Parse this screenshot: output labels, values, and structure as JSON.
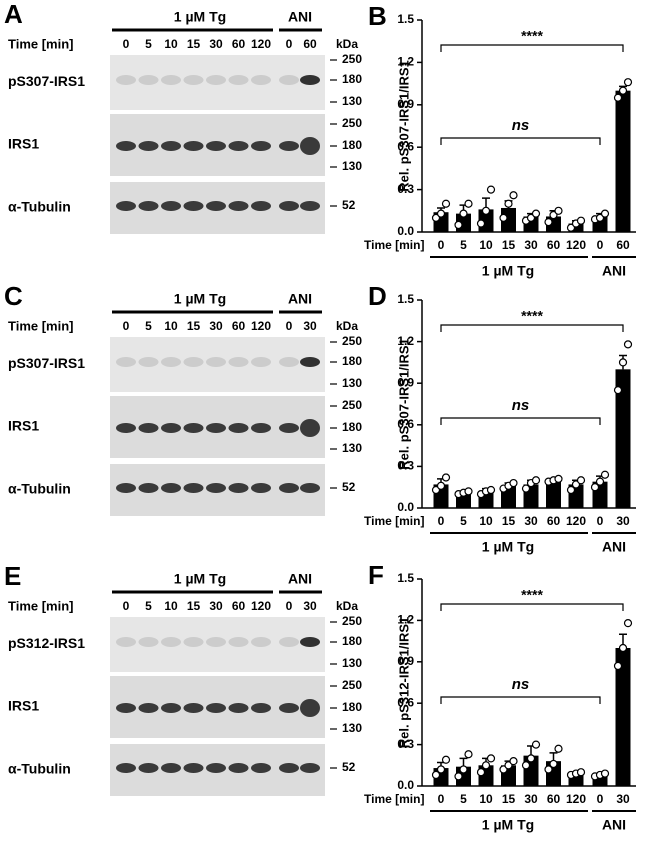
{
  "blots": [
    {
      "panel": "A",
      "treatment": "1 µM Tg",
      "control": "ANI",
      "time_label": "Time [min]",
      "lanes": [
        "0",
        "5",
        "10",
        "15",
        "30",
        "60",
        "120",
        "0",
        "60"
      ],
      "unit": "kDa",
      "rows": [
        {
          "label": "pS307-IRS1",
          "markers": [
            "250",
            "180",
            "130"
          ]
        },
        {
          "label": "IRS1",
          "markers": [
            "250",
            "180",
            "130"
          ]
        },
        {
          "label": "α-Tubulin",
          "markers": [
            "52"
          ]
        }
      ]
    },
    {
      "panel": "C",
      "treatment": "1 µM Tg",
      "control": "ANI",
      "time_label": "Time [min]",
      "lanes": [
        "0",
        "5",
        "10",
        "15",
        "30",
        "60",
        "120",
        "0",
        "30"
      ],
      "unit": "kDa",
      "rows": [
        {
          "label": "pS307-IRS1",
          "markers": [
            "250",
            "180",
            "130"
          ]
        },
        {
          "label": "IRS1",
          "markers": [
            "250",
            "180",
            "130"
          ]
        },
        {
          "label": "α-Tubulin",
          "markers": [
            "52"
          ]
        }
      ]
    },
    {
      "panel": "E",
      "treatment": "1 µM Tg",
      "control": "ANI",
      "time_label": "Time [min]",
      "lanes": [
        "0",
        "5",
        "10",
        "15",
        "30",
        "60",
        "120",
        "0",
        "30"
      ],
      "unit": "kDa",
      "rows": [
        {
          "label": "pS312-IRS1",
          "markers": [
            "250",
            "180",
            "130"
          ]
        },
        {
          "label": "IRS1",
          "markers": [
            "250",
            "180",
            "130"
          ]
        },
        {
          "label": "α-Tubulin",
          "markers": [
            "52"
          ]
        }
      ]
    }
  ],
  "chart_data": [
    {
      "type": "bar",
      "panel": "B",
      "ylabel": "Rel. pS307-IRS1/IRS1",
      "x_label": "Time [min]",
      "group_labels": [
        "1 µM Tg",
        "ANI"
      ],
      "categories": [
        "0",
        "5",
        "10",
        "15",
        "30",
        "60",
        "120",
        "0",
        "60"
      ],
      "values": [
        0.14,
        0.13,
        0.16,
        0.17,
        0.11,
        0.11,
        0.06,
        0.11,
        1.0
      ],
      "errors": [
        0.03,
        0.06,
        0.08,
        0.05,
        0.02,
        0.04,
        0.02,
        0.02,
        0.03
      ],
      "points": [
        [
          0.1,
          0.13,
          0.2
        ],
        [
          0.05,
          0.13,
          0.2
        ],
        [
          0.06,
          0.15,
          0.3
        ],
        [
          0.1,
          0.2,
          0.26
        ],
        [
          0.08,
          0.1,
          0.13
        ],
        [
          0.07,
          0.12,
          0.15
        ],
        [
          0.03,
          0.06,
          0.08
        ],
        [
          0.09,
          0.1,
          0.13
        ],
        [
          0.95,
          1.0,
          1.06
        ]
      ],
      "annotations": [
        "****",
        "ns"
      ],
      "color": "#000000",
      "ylim": [
        0,
        1.5
      ],
      "yticks": [
        {
          "value": 0,
          "label": "0.0"
        },
        0.3,
        0.6,
        0.9,
        1.2,
        1.5
      ]
    },
    {
      "type": "bar",
      "panel": "D",
      "ylabel": "Rel. pS307-IRS1/IRS1",
      "x_label": "Time [min]",
      "group_labels": [
        "1 µM Tg",
        "ANI"
      ],
      "categories": [
        "0",
        "5",
        "10",
        "15",
        "30",
        "60",
        "120",
        "0",
        "30"
      ],
      "values": [
        0.17,
        0.11,
        0.12,
        0.16,
        0.17,
        0.2,
        0.17,
        0.19,
        1.0
      ],
      "errors": [
        0.04,
        0.01,
        0.02,
        0.02,
        0.03,
        0.01,
        0.03,
        0.04,
        0.1
      ],
      "points": [
        [
          0.13,
          0.16,
          0.22
        ],
        [
          0.1,
          0.11,
          0.12
        ],
        [
          0.1,
          0.12,
          0.13
        ],
        [
          0.14,
          0.16,
          0.18
        ],
        [
          0.14,
          0.18,
          0.2
        ],
        [
          0.19,
          0.2,
          0.21
        ],
        [
          0.13,
          0.17,
          0.2
        ],
        [
          0.15,
          0.19,
          0.24
        ],
        [
          0.85,
          1.05,
          1.18
        ]
      ],
      "annotations": [
        "****",
        "ns"
      ],
      "color": "#000000",
      "ylim": [
        0,
        1.5
      ],
      "yticks": [
        {
          "value": 0,
          "label": "0.0"
        },
        0.3,
        0.6,
        0.9,
        1.2,
        1.5
      ]
    },
    {
      "type": "bar",
      "panel": "F",
      "ylabel": "Rel. pS312-IRS1/IRS1",
      "x_label": "Time [min]",
      "group_labels": [
        "1 µM Tg",
        "ANI"
      ],
      "categories": [
        "0",
        "5",
        "10",
        "15",
        "30",
        "60",
        "120",
        "0",
        "30"
      ],
      "values": [
        0.13,
        0.14,
        0.15,
        0.15,
        0.22,
        0.18,
        0.09,
        0.08,
        1.0
      ],
      "errors": [
        0.04,
        0.06,
        0.05,
        0.03,
        0.07,
        0.06,
        0.01,
        0.01,
        0.1
      ],
      "points": [
        [
          0.08,
          0.12,
          0.19
        ],
        [
          0.07,
          0.12,
          0.23
        ],
        [
          0.1,
          0.15,
          0.2
        ],
        [
          0.12,
          0.15,
          0.18
        ],
        [
          0.15,
          0.2,
          0.3
        ],
        [
          0.12,
          0.16,
          0.27
        ],
        [
          0.08,
          0.09,
          0.1
        ],
        [
          0.07,
          0.08,
          0.09
        ],
        [
          0.87,
          1.0,
          1.18
        ]
      ],
      "annotations": [
        "****",
        "ns"
      ],
      "color": "#000000",
      "ylim": [
        0,
        1.5
      ],
      "yticks": [
        {
          "value": 0,
          "label": "0.0"
        },
        0.3,
        0.6,
        0.9,
        1.2,
        1.5
      ]
    }
  ]
}
